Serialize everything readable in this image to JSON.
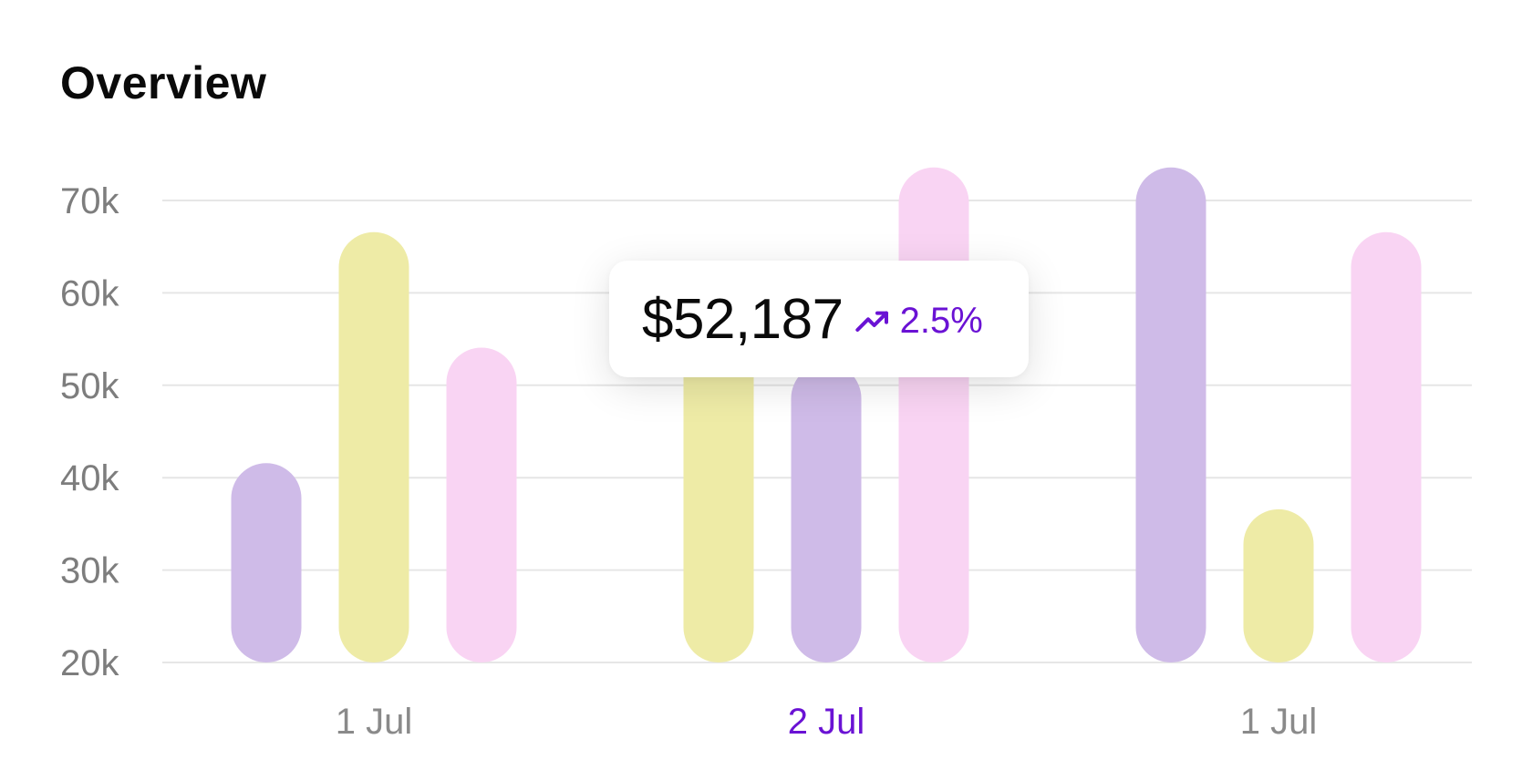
{
  "title": "Overview",
  "tooltip": {
    "value": "$52,187",
    "change": "2.5%",
    "trend_icon": "trending-up-icon"
  },
  "colors": {
    "purple": "#cfbbe8",
    "yellow": "#eeeba6",
    "pink": "#f9d4f3",
    "accent": "#6a12d4",
    "grid": "#e6e6e6"
  },
  "chart_data": {
    "type": "bar",
    "title": "Overview",
    "xlabel": "",
    "ylabel": "",
    "ylim": [
      20000,
      70000
    ],
    "y_ticks": [
      "20k",
      "30k",
      "40k",
      "50k",
      "60k",
      "70k"
    ],
    "y_tick_values": [
      20000,
      30000,
      40000,
      50000,
      60000,
      70000
    ],
    "grid": true,
    "legend": "none",
    "categories": [
      "1 Jul",
      "2 Jul",
      "1 Jul"
    ],
    "active_category_index": 1,
    "groups": [
      {
        "label": "1 Jul",
        "bars": [
          {
            "value": 40000,
            "color": "purple"
          },
          {
            "value": 65000,
            "color": "yellow"
          },
          {
            "value": 52500,
            "color": "pink"
          }
        ]
      },
      {
        "label": "2 Jul",
        "bars": [
          {
            "value": 58000,
            "color": "yellow"
          },
          {
            "value": 50800,
            "color": "purple"
          },
          {
            "value": 72000,
            "color": "pink"
          }
        ]
      },
      {
        "label": "1 Jul",
        "bars": [
          {
            "value": 72000,
            "color": "purple"
          },
          {
            "value": 35000,
            "color": "yellow"
          },
          {
            "value": 65000,
            "color": "pink"
          }
        ]
      }
    ]
  }
}
